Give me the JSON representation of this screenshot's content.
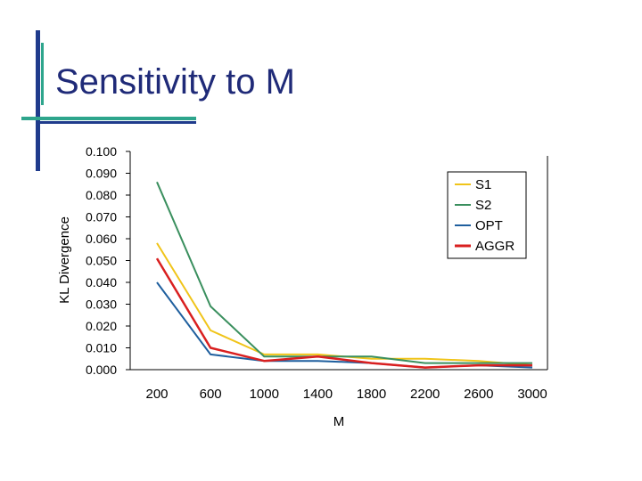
{
  "slide": {
    "title": "Sensitivity to M",
    "colors": {
      "title": "#1f2a78",
      "accent_blue": "#1f3b8c",
      "accent_teal": "#2ea58c"
    }
  },
  "chart_data": {
    "type": "line",
    "title": "",
    "xlabel": "M",
    "ylabel": "KL Divergence",
    "categories": [
      "200",
      "600",
      "1000",
      "1400",
      "1800",
      "2200",
      "2600",
      "3000"
    ],
    "y_tick_labels": [
      "0.000",
      "0.010",
      "0.020",
      "0.030",
      "0.040",
      "0.050",
      "0.060",
      "0.070",
      "0.080",
      "0.090",
      "0.100"
    ],
    "ylim": [
      0,
      0.1
    ],
    "grid": false,
    "legend_position": "top-right",
    "series": [
      {
        "name": "S1",
        "color": "#f0c419",
        "values": [
          0.058,
          0.018,
          0.007,
          0.007,
          0.005,
          0.005,
          0.004,
          0.002
        ]
      },
      {
        "name": "S2",
        "color": "#3a8f5e",
        "values": [
          0.086,
          0.029,
          0.006,
          0.006,
          0.006,
          0.003,
          0.003,
          0.003
        ]
      },
      {
        "name": "OPT",
        "color": "#1f5f9e",
        "values": [
          0.04,
          0.007,
          0.004,
          0.004,
          0.003,
          0.001,
          0.002,
          0.001
        ]
      },
      {
        "name": "AGGR",
        "color": "#d91f1f",
        "values": [
          0.051,
          0.01,
          0.004,
          0.006,
          0.003,
          0.001,
          0.002,
          0.002
        ]
      }
    ]
  }
}
